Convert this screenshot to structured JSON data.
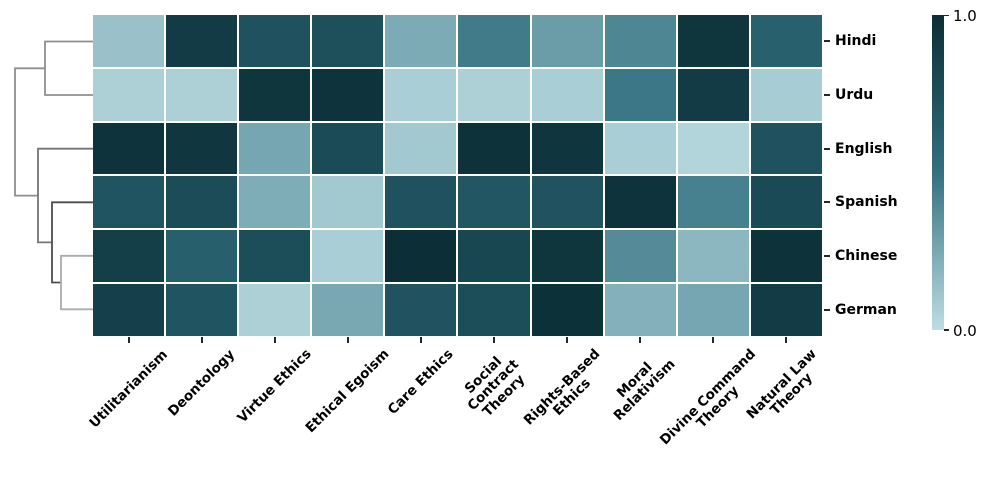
{
  "chart_data": {
    "type": "heatmap",
    "subtype": "clustermap-with-row-dendrogram",
    "rows": [
      "Hindi",
      "Urdu",
      "English",
      "Spanish",
      "Chinese",
      "German"
    ],
    "columns": [
      "Utilitarianism",
      "Deontology",
      "Virtue Ethics",
      "Ethical Egoism",
      "Care Ethics",
      "Social\nContract\nTheory",
      "Rights-Based\nEthics",
      "Moral\nRelativism",
      "Divine Command\nTheory",
      "Natural Law\nTheory"
    ],
    "values": [
      [
        0.13,
        0.9,
        0.73,
        0.74,
        0.24,
        0.45,
        0.3,
        0.4,
        0.95,
        0.62
      ],
      [
        0.06,
        0.06,
        0.95,
        0.96,
        0.07,
        0.06,
        0.07,
        0.47,
        0.9,
        0.08
      ],
      [
        0.96,
        0.93,
        0.26,
        0.78,
        0.1,
        0.97,
        0.94,
        0.07,
        0.04,
        0.73
      ],
      [
        0.71,
        0.77,
        0.23,
        0.1,
        0.73,
        0.7,
        0.72,
        0.96,
        0.43,
        0.79
      ],
      [
        0.88,
        0.63,
        0.76,
        0.07,
        0.99,
        0.82,
        0.95,
        0.38,
        0.18,
        0.97
      ],
      [
        0.86,
        0.71,
        0.06,
        0.25,
        0.72,
        0.76,
        0.98,
        0.21,
        0.26,
        0.9
      ]
    ],
    "value_range": [
      0.0,
      1.0
    ],
    "grid_line_color": "#ffffff",
    "colormap": {
      "stops": [
        {
          "pos": 0.0,
          "color": "#bddde3"
        },
        {
          "pos": 0.25,
          "color": "#79a8b3"
        },
        {
          "pos": 0.5,
          "color": "#337080"
        },
        {
          "pos": 0.75,
          "color": "#1d4f5b"
        },
        {
          "pos": 1.0,
          "color": "#0b2e36"
        }
      ]
    },
    "colorbar": {
      "max_label": "1.0",
      "min_label": "0.0"
    },
    "dendrogram": {
      "orientation": "left",
      "clusters_order_top_to_bottom": [
        "Hindi",
        "Urdu",
        "English",
        "Spanish",
        "Chinese",
        "German"
      ],
      "links": [
        {
          "name": "hindi-urdu",
          "color": "#8f8f8f",
          "points": [
            [
              93,
              41.5
            ],
            [
              45,
              41.5
            ],
            [
              45,
              95
            ],
            [
              93,
              95
            ]
          ]
        },
        {
          "name": "root",
          "color": "#8f8f8f",
          "points": [
            [
              45,
              68.3
            ],
            [
              15,
              68.3
            ],
            [
              15,
              195.6
            ],
            [
              38,
              195.6
            ]
          ]
        },
        {
          "name": "english-join",
          "color": "#757575",
          "points": [
            [
              93,
              148.7
            ],
            [
              38,
              148.7
            ],
            [
              38,
              242.4
            ],
            [
              52,
              242.4
            ]
          ]
        },
        {
          "name": "spanish-join",
          "color": "#4d4d4d",
          "points": [
            [
              93,
              202.3
            ],
            [
              52,
              202.3
            ],
            [
              52,
              282.5
            ],
            [
              61,
              282.5
            ]
          ]
        },
        {
          "name": "chinese-german",
          "color": "#ababab",
          "points": [
            [
              93,
              255.8
            ],
            [
              61,
              255.8
            ],
            [
              61,
              309.3
            ],
            [
              93,
              309.3
            ]
          ]
        }
      ]
    }
  }
}
